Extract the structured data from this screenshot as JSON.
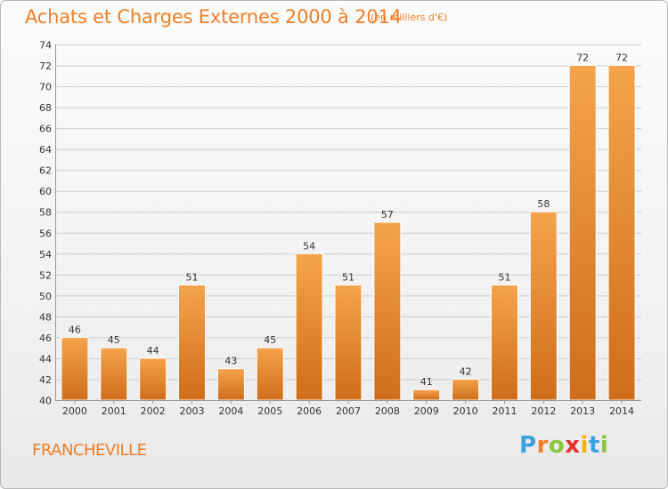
{
  "header": {
    "title": "Achats et Charges Externes 2000 à 2014",
    "subtitle": "(en milliers d'€)"
  },
  "footer": {
    "commune": "FRANCHEVILLE",
    "logo_letters": [
      "P",
      "r",
      "o",
      "x",
      "i",
      "t",
      "i"
    ],
    "logo_colors": [
      "#3aa3df",
      "#f07e26",
      "#8cc63f",
      "#e5322d",
      "#f4b400",
      "#3aa3df",
      "#8cc63f"
    ]
  },
  "colors": {
    "bar_top": "#f5a34d",
    "bar_bottom": "#cf6d1a",
    "accent": "#f07e26",
    "grid": "#cccccc"
  },
  "chart_data": {
    "type": "bar",
    "title": "Achats et Charges Externes 2000 à 2014",
    "subtitle": "(en milliers d'€)",
    "categories": [
      "2000",
      "2001",
      "2002",
      "2003",
      "2004",
      "2005",
      "2006",
      "2007",
      "2008",
      "2009",
      "2010",
      "2011",
      "2012",
      "2013",
      "2014"
    ],
    "values": [
      46,
      45,
      44,
      51,
      43,
      45,
      54,
      51,
      57,
      41,
      42,
      51,
      58,
      72,
      72
    ],
    "ylim": [
      40,
      74
    ],
    "yticks": [
      40,
      42,
      44,
      46,
      48,
      50,
      52,
      54,
      56,
      58,
      60,
      62,
      64,
      66,
      68,
      70,
      72,
      74
    ],
    "grid": true,
    "legend": "none"
  }
}
